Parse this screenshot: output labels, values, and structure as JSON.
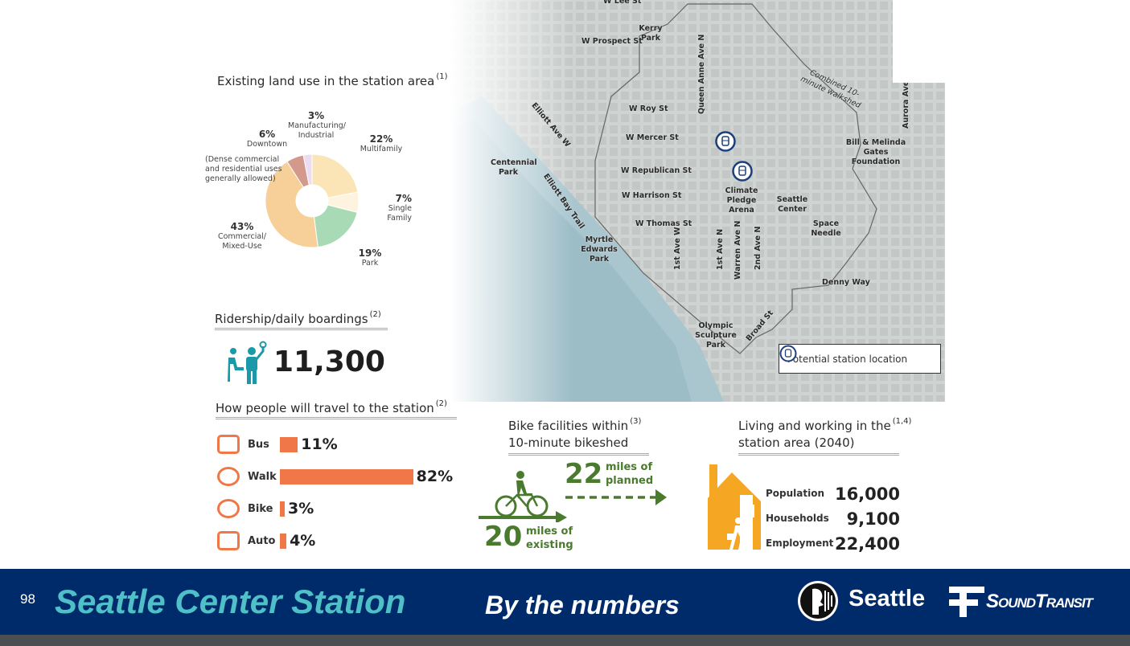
{
  "land_use": {
    "title": "Existing land use in the station area",
    "note": "(1)",
    "chart_data": {
      "type": "pie",
      "title": "Existing land use in the station area",
      "categories": [
        "Multifamily",
        "Single Family",
        "Park",
        "Commercial/ Mixed-Use",
        "Downtown",
        "Manufacturing/ Industrial"
      ],
      "values": [
        22,
        7,
        19,
        43,
        6,
        3
      ],
      "colors": [
        "#fbe5b6",
        "#fdf3df",
        "#a8dab6",
        "#f7cf98",
        "#d39a8b",
        "#ecdcef"
      ]
    },
    "labels": [
      {
        "pct": "22%",
        "name": "Multifamily"
      },
      {
        "pct": "7%",
        "name": "Single Family"
      },
      {
        "pct": "19%",
        "name": "Park"
      },
      {
        "pct": "43%",
        "name": "Commercial/ Mixed-Use"
      },
      {
        "pct": "6%",
        "name": "Downtown"
      },
      {
        "pct": "3%",
        "name": "Manufacturing/ Industrial"
      }
    ],
    "downtown_note": "(Dense commercial and residential uses generally allowed)"
  },
  "ridership": {
    "title": "Ridership/daily boardings",
    "note": "(2)",
    "value": "11,300"
  },
  "travel": {
    "title": "How people will travel to the station",
    "note": "(2)",
    "modes": [
      {
        "label": "Bus",
        "pct": 11,
        "text": "11%"
      },
      {
        "label": "Walk",
        "pct": 82,
        "text": "82%"
      },
      {
        "label": "Bike",
        "pct": 3,
        "text": "3%"
      },
      {
        "label": "Auto",
        "pct": 4,
        "text": "4%"
      }
    ],
    "color": "#f07848"
  },
  "bike": {
    "title1": "Bike facilities within",
    "title2": "10-minute bikeshed",
    "note": "(3)",
    "planned_num": "22",
    "planned_l1": "miles of",
    "planned_l2": "planned",
    "existing_num": "20",
    "existing_l1": "miles of",
    "existing_l2": "existing",
    "color": "#4a7a2e"
  },
  "living": {
    "title1": "Living and working in the",
    "title2": "station area (2040)",
    "note": "(1,4)",
    "stats": [
      {
        "label": "Population",
        "value": "16,000"
      },
      {
        "label": "Households",
        "value": "9,100"
      },
      {
        "label": "Employment",
        "value": "22,400"
      }
    ]
  },
  "map": {
    "labels": [
      "W Lee St",
      "Kerry Park",
      "W Prospect St",
      "Queen Anne Ave N",
      "Combined 10-minute walkshed",
      "Aurora Ave",
      "W Roy St",
      "Elliott Ave W",
      "W Mercer St",
      "Bill & Melinda Gates Foundation",
      "Centennial Park",
      "W Republican St",
      "Elliott Bay Trail",
      "W Harrison St",
      "Climate Pledge Arena",
      "Seattle Center",
      "W Thomas St",
      "Space Needle",
      "Myrtle Edwards Park",
      "1st Ave W",
      "1st Ave N",
      "Warren Ave N",
      "2nd Ave N",
      "Denny Way",
      "Olympic Sculpture Park",
      "Broad St"
    ],
    "legend": "Potential station location"
  },
  "footer": {
    "page": "98",
    "title": "Seattle Center Station",
    "subtitle": "By the numbers",
    "seattle": "Seattle",
    "sound": "SoundTransit",
    "bg": "#002b6b",
    "accent": "#4fc0c8"
  }
}
